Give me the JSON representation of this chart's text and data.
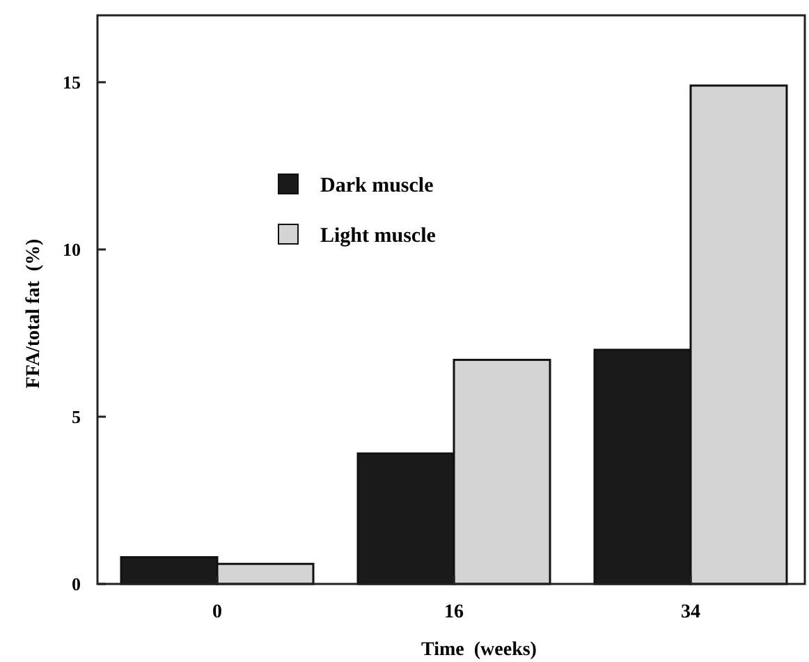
{
  "chart_data": {
    "type": "bar",
    "xlabel": "Time  (weeks)",
    "ylabel": "FFA/total fat  (%)",
    "categories": [
      "0",
      "16",
      "34"
    ],
    "series": [
      {
        "name": "Dark muscle",
        "color": "#1a1a1a",
        "values": [
          0.8,
          3.9,
          7.0
        ]
      },
      {
        "name": "Light muscle",
        "color": "#d4d4d4",
        "values": [
          0.6,
          6.7,
          14.9
        ]
      }
    ],
    "ylim": [
      0,
      17
    ],
    "yticks": [
      0,
      5,
      10,
      15
    ],
    "grid": false,
    "legend": "top left"
  }
}
